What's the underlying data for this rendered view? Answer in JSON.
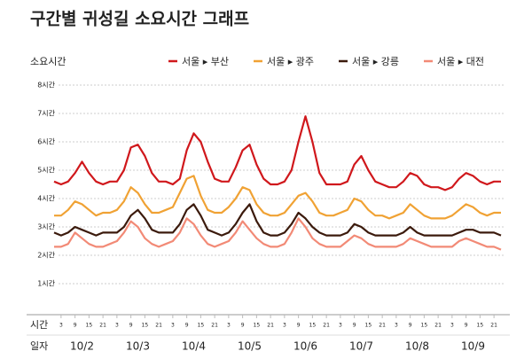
{
  "chart_data": {
    "type": "line",
    "title": "구간별 귀성길 소요시간 그래프",
    "ylabel": "소요시간",
    "xlabel": "시간",
    "x2label": "일자",
    "ylim": [
      0,
      8
    ],
    "yticks": [
      {
        "value": 1,
        "label": "1시간"
      },
      {
        "value": 2,
        "label": "2시간"
      },
      {
        "value": 3,
        "label": "3시간"
      },
      {
        "value": 4,
        "label": "4시간"
      },
      {
        "value": 5,
        "label": "5시간"
      },
      {
        "value": 6,
        "label": "6시간"
      },
      {
        "value": 7,
        "label": "7시간"
      },
      {
        "value": 8,
        "label": "8시간"
      }
    ],
    "xlim": [
      0,
      192
    ],
    "xticks": [
      {
        "value": 3,
        "label": "3"
      },
      {
        "value": 9,
        "label": "9"
      },
      {
        "value": 15,
        "label": "15"
      },
      {
        "value": 21,
        "label": "21"
      },
      {
        "value": 27,
        "label": "3"
      },
      {
        "value": 33,
        "label": "9"
      },
      {
        "value": 39,
        "label": "15"
      },
      {
        "value": 45,
        "label": "21"
      },
      {
        "value": 51,
        "label": "3"
      },
      {
        "value": 57,
        "label": "9"
      },
      {
        "value": 63,
        "label": "15"
      },
      {
        "value": 69,
        "label": "21"
      },
      {
        "value": 75,
        "label": "3"
      },
      {
        "value": 81,
        "label": "9"
      },
      {
        "value": 87,
        "label": "15"
      },
      {
        "value": 93,
        "label": "21"
      },
      {
        "value": 99,
        "label": "3"
      },
      {
        "value": 105,
        "label": "9"
      },
      {
        "value": 111,
        "label": "15"
      },
      {
        "value": 117,
        "label": "21"
      },
      {
        "value": 123,
        "label": "3"
      },
      {
        "value": 129,
        "label": "9"
      },
      {
        "value": 135,
        "label": "15"
      },
      {
        "value": 141,
        "label": "21"
      },
      {
        "value": 147,
        "label": "3"
      },
      {
        "value": 153,
        "label": "9"
      },
      {
        "value": 159,
        "label": "15"
      },
      {
        "value": 165,
        "label": "21"
      },
      {
        "value": 171,
        "label": "3"
      },
      {
        "value": 177,
        "label": "9"
      },
      {
        "value": 183,
        "label": "15"
      },
      {
        "value": 189,
        "label": "21"
      }
    ],
    "day_labels": [
      {
        "value": 12,
        "label": "10/2"
      },
      {
        "value": 36,
        "label": "10/3"
      },
      {
        "value": 60,
        "label": "10/4"
      },
      {
        "value": 84,
        "label": "10/5"
      },
      {
        "value": 108,
        "label": "10/6"
      },
      {
        "value": 132,
        "label": "10/7"
      },
      {
        "value": 156,
        "label": "10/8"
      },
      {
        "value": 180,
        "label": "10/9"
      }
    ],
    "grid": true,
    "legend": "top-right",
    "x": [
      0,
      3,
      6,
      9,
      12,
      15,
      18,
      21,
      24,
      27,
      30,
      33,
      36,
      39,
      42,
      45,
      48,
      51,
      54,
      57,
      60,
      63,
      66,
      69,
      72,
      75,
      78,
      81,
      84,
      87,
      90,
      93,
      96,
      99,
      102,
      105,
      108,
      111,
      114,
      117,
      120,
      123,
      126,
      129,
      132,
      135,
      138,
      141,
      144,
      147,
      150,
      153,
      156,
      159,
      162,
      165,
      168,
      171,
      174,
      177,
      180,
      183,
      186,
      189,
      192
    ],
    "series": [
      {
        "name": "서울 ▸ 부산",
        "color": "#d0181c",
        "values": [
          4.6,
          4.5,
          4.6,
          4.9,
          5.3,
          4.9,
          4.6,
          4.5,
          4.6,
          4.6,
          5.0,
          5.8,
          5.9,
          5.5,
          4.9,
          4.6,
          4.6,
          4.5,
          4.7,
          5.7,
          6.3,
          6.0,
          5.3,
          4.7,
          4.6,
          4.6,
          5.1,
          5.7,
          5.9,
          5.2,
          4.7,
          4.5,
          4.5,
          4.6,
          5.0,
          6.0,
          6.9,
          6.0,
          4.9,
          4.5,
          4.5,
          4.5,
          4.6,
          5.2,
          5.5,
          5.0,
          4.6,
          4.5,
          4.4,
          4.4,
          4.6,
          4.9,
          4.8,
          4.5,
          4.4,
          4.4,
          4.3,
          4.4,
          4.7,
          4.9,
          4.8,
          4.6,
          4.5,
          4.6,
          4.6
        ]
      },
      {
        "name": "서울 ▸ 광주",
        "color": "#f0a234",
        "values": [
          3.4,
          3.4,
          3.6,
          3.9,
          3.8,
          3.6,
          3.4,
          3.5,
          3.5,
          3.6,
          3.9,
          4.4,
          4.2,
          3.8,
          3.5,
          3.5,
          3.6,
          3.7,
          4.2,
          4.7,
          4.8,
          4.1,
          3.6,
          3.5,
          3.5,
          3.7,
          4.0,
          4.4,
          4.3,
          3.8,
          3.5,
          3.4,
          3.4,
          3.5,
          3.8,
          4.1,
          4.2,
          3.9,
          3.5,
          3.4,
          3.4,
          3.5,
          3.6,
          4.0,
          3.9,
          3.6,
          3.4,
          3.4,
          3.3,
          3.4,
          3.5,
          3.8,
          3.6,
          3.4,
          3.3,
          3.3,
          3.3,
          3.4,
          3.6,
          3.8,
          3.7,
          3.5,
          3.4,
          3.5,
          3.5
        ]
      },
      {
        "name": "서울 ▸ 강릉",
        "color": "#3b1a0c",
        "values": [
          2.8,
          2.7,
          2.8,
          3.0,
          2.9,
          2.8,
          2.7,
          2.8,
          2.8,
          2.8,
          3.0,
          3.4,
          3.6,
          3.3,
          2.9,
          2.8,
          2.8,
          2.8,
          3.1,
          3.6,
          3.8,
          3.4,
          2.9,
          2.8,
          2.7,
          2.8,
          3.1,
          3.5,
          3.8,
          3.2,
          2.8,
          2.7,
          2.7,
          2.8,
          3.1,
          3.5,
          3.3,
          3.0,
          2.8,
          2.7,
          2.7,
          2.7,
          2.8,
          3.1,
          3.0,
          2.8,
          2.7,
          2.7,
          2.7,
          2.7,
          2.8,
          3.0,
          2.8,
          2.7,
          2.7,
          2.7,
          2.7,
          2.7,
          2.8,
          2.9,
          2.9,
          2.8,
          2.8,
          2.8,
          2.7
        ]
      },
      {
        "name": "서울 ▸ 대전",
        "color": "#f28a76",
        "values": [
          2.3,
          2.3,
          2.4,
          2.8,
          2.6,
          2.4,
          2.3,
          2.3,
          2.4,
          2.5,
          2.8,
          3.2,
          3.0,
          2.6,
          2.4,
          2.3,
          2.4,
          2.5,
          2.8,
          3.3,
          3.1,
          2.7,
          2.4,
          2.3,
          2.4,
          2.5,
          2.8,
          3.2,
          2.9,
          2.6,
          2.4,
          2.3,
          2.3,
          2.4,
          2.8,
          3.3,
          3.0,
          2.6,
          2.4,
          2.3,
          2.3,
          2.3,
          2.5,
          2.7,
          2.6,
          2.4,
          2.3,
          2.3,
          2.3,
          2.3,
          2.4,
          2.6,
          2.5,
          2.4,
          2.3,
          2.3,
          2.3,
          2.3,
          2.5,
          2.6,
          2.5,
          2.4,
          2.3,
          2.3,
          2.2
        ]
      }
    ]
  }
}
